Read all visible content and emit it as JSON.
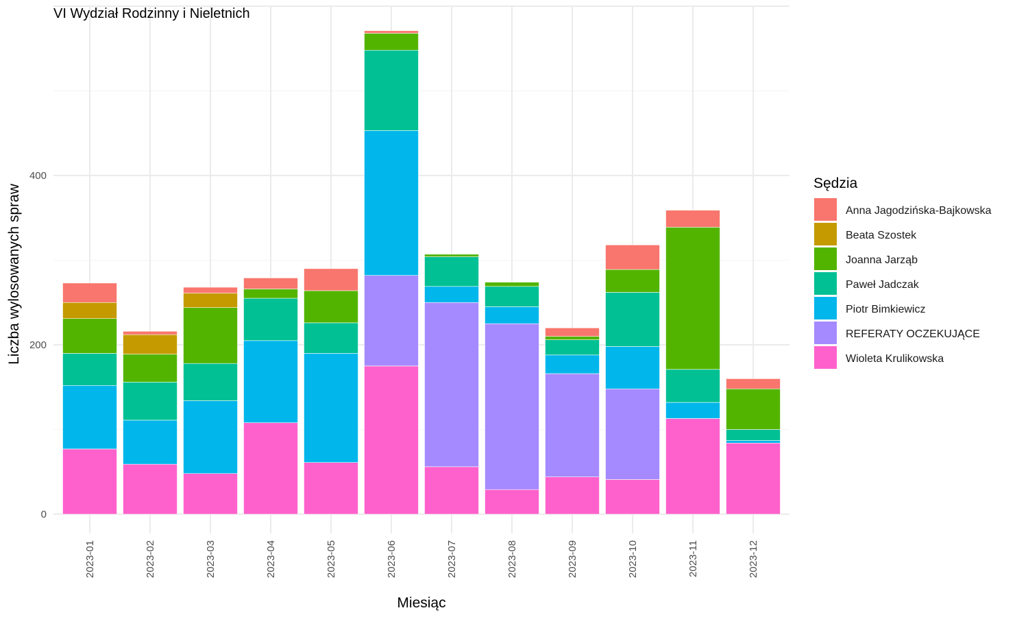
{
  "chart_data": {
    "type": "bar",
    "stacked": true,
    "title": "VI Wydział Rodzinny i Nieletnich",
    "xlabel": "Miesiąc",
    "ylabel": "Liczba wylosowanych spraw",
    "legend_title": "Sędzia",
    "legend_position": "right",
    "grid": true,
    "ylim": [
      0,
      600
    ],
    "yticks": [
      0,
      200,
      400
    ],
    "categories": [
      "2023-01",
      "2023-02",
      "2023-03",
      "2023-04",
      "2023-05",
      "2023-06",
      "2023-07",
      "2023-08",
      "2023-09",
      "2023-10",
      "2023-11",
      "2023-12"
    ],
    "series": [
      {
        "name": "Wioleta Krulikowska",
        "color": "#FF61CC",
        "values": [
          77,
          59,
          48,
          108,
          61,
          175,
          56,
          29,
          44,
          41,
          113,
          84
        ]
      },
      {
        "name": "REFERATY OCZEKUJĄCE",
        "color": "#A58AFF",
        "values": [
          0,
          0,
          0,
          0,
          0,
          107,
          194,
          196,
          122,
          107,
          0,
          0
        ]
      },
      {
        "name": "Piotr Bimkiewicz",
        "color": "#00B6EB",
        "values": [
          75,
          52,
          86,
          97,
          129,
          171,
          19,
          20,
          22,
          50,
          19,
          3
        ]
      },
      {
        "name": "Paweł Jadczak",
        "color": "#00C094",
        "values": [
          38,
          45,
          44,
          50,
          36,
          95,
          35,
          24,
          18,
          64,
          39,
          13
        ]
      },
      {
        "name": "Joanna Jarząb",
        "color": "#53B400",
        "values": [
          41,
          33,
          66,
          11,
          38,
          20,
          3,
          5,
          4,
          27,
          168,
          48
        ]
      },
      {
        "name": "Beata Szostek",
        "color": "#C49A00",
        "values": [
          19,
          23,
          17,
          0,
          0,
          0,
          0,
          0,
          0,
          0,
          0,
          0
        ]
      },
      {
        "name": "Anna Jagodzińska-Bajkowska",
        "color": "#F8766D",
        "values": [
          23,
          4,
          7,
          13,
          26,
          3,
          0,
          0,
          10,
          29,
          20,
          12
        ]
      }
    ],
    "legend_order": [
      "Anna Jagodzińska-Bajkowska",
      "Beata Szostek",
      "Joanna Jarząb",
      "Paweł Jadczak",
      "Piotr Bimkiewicz",
      "REFERATY OCZEKUJĄCE",
      "Wioleta Krulikowska"
    ]
  }
}
